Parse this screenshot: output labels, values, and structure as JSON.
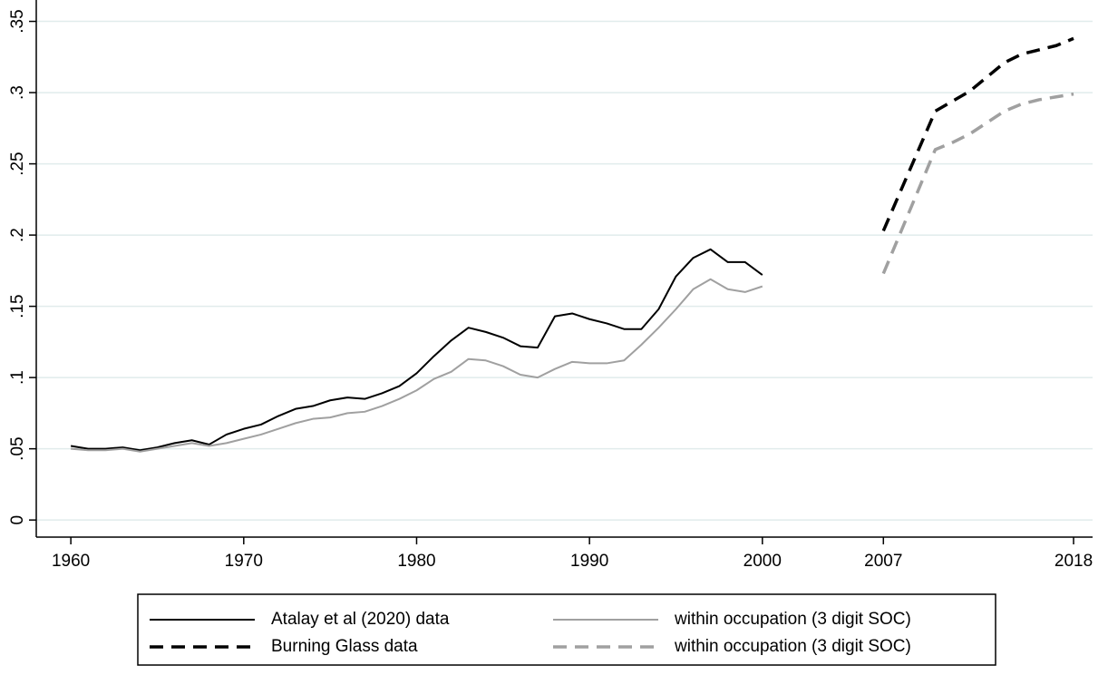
{
  "chart_data": {
    "type": "line",
    "xlim": [
      1958,
      2019.1
    ],
    "xticks": [
      1960,
      1970,
      1980,
      1990,
      2000,
      2007,
      2018
    ],
    "ylim": [
      -0.012,
      0.365
    ],
    "yticks": [
      0,
      {
        "value": 0.05,
        "label": ".05"
      },
      {
        "value": 0.1,
        "label": ".1"
      },
      {
        "value": 0.15,
        "label": ".15"
      },
      {
        "value": 0.2,
        "label": ".2"
      },
      {
        "value": 0.25,
        "label": ".25"
      },
      {
        "value": 0.3,
        "label": ".3"
      },
      {
        "value": 0.35,
        "label": ".35"
      }
    ],
    "grid": true,
    "legend": "bottom",
    "series": [
      {
        "name": "Atalay et al (2020) data",
        "color": "#000000",
        "dashed": false,
        "x": [
          1960,
          1961,
          1962,
          1963,
          1964,
          1965,
          1966,
          1967,
          1968,
          1969,
          1970,
          1971,
          1972,
          1973,
          1974,
          1975,
          1976,
          1977,
          1978,
          1979,
          1980,
          1981,
          1982,
          1983,
          1984,
          1985,
          1986,
          1987,
          1988,
          1989,
          1990,
          1991,
          1992,
          1993,
          1994,
          1995,
          1996,
          1997,
          1998,
          1999,
          2000
        ],
        "values": [
          0.052,
          0.05,
          0.05,
          0.051,
          0.049,
          0.051,
          0.054,
          0.056,
          0.053,
          0.06,
          0.064,
          0.067,
          0.073,
          0.078,
          0.08,
          0.084,
          0.086,
          0.085,
          0.089,
          0.094,
          0.103,
          0.115,
          0.126,
          0.135,
          0.132,
          0.128,
          0.122,
          0.121,
          0.143,
          0.145,
          0.141,
          0.138,
          0.134,
          0.134,
          0.148,
          0.171,
          0.184,
          0.19,
          0.181,
          0.181,
          0.172
        ]
      },
      {
        "name": "within occupation (3 digit SOC)",
        "color": "#a0a0a0",
        "dashed": false,
        "x": [
          1960,
          1961,
          1962,
          1963,
          1964,
          1965,
          1966,
          1967,
          1968,
          1969,
          1970,
          1971,
          1972,
          1973,
          1974,
          1975,
          1976,
          1977,
          1978,
          1979,
          1980,
          1981,
          1982,
          1983,
          1984,
          1985,
          1986,
          1987,
          1988,
          1989,
          1990,
          1991,
          1992,
          1993,
          1994,
          1995,
          1996,
          1997,
          1998,
          1999,
          2000
        ],
        "values": [
          0.05,
          0.049,
          0.049,
          0.05,
          0.048,
          0.05,
          0.052,
          0.054,
          0.052,
          0.054,
          0.057,
          0.06,
          0.064,
          0.068,
          0.071,
          0.072,
          0.075,
          0.076,
          0.08,
          0.085,
          0.091,
          0.099,
          0.104,
          0.113,
          0.112,
          0.108,
          0.102,
          0.1,
          0.106,
          0.111,
          0.11,
          0.11,
          0.112,
          0.123,
          0.135,
          0.148,
          0.162,
          0.169,
          0.162,
          0.16,
          0.164
        ]
      },
      {
        "name": "Burning Glass data",
        "color": "#000000",
        "dashed": true,
        "x": [
          2007,
          2008,
          2009,
          2010,
          2011,
          2012,
          2013,
          2014,
          2015,
          2016,
          2017,
          2018
        ],
        "values": [
          0.203,
          0.231,
          0.259,
          0.287,
          0.294,
          0.301,
          0.311,
          0.321,
          0.327,
          0.33,
          0.333,
          0.338
        ]
      },
      {
        "name": "within occupation (3 digit SOC)",
        "color": "#a0a0a0",
        "dashed": true,
        "x": [
          2007,
          2008,
          2009,
          2010,
          2011,
          2012,
          2013,
          2014,
          2015,
          2016,
          2017,
          2018
        ],
        "values": [
          0.173,
          0.202,
          0.231,
          0.26,
          0.265,
          0.271,
          0.279,
          0.287,
          0.292,
          0.295,
          0.297,
          0.299
        ]
      }
    ]
  }
}
